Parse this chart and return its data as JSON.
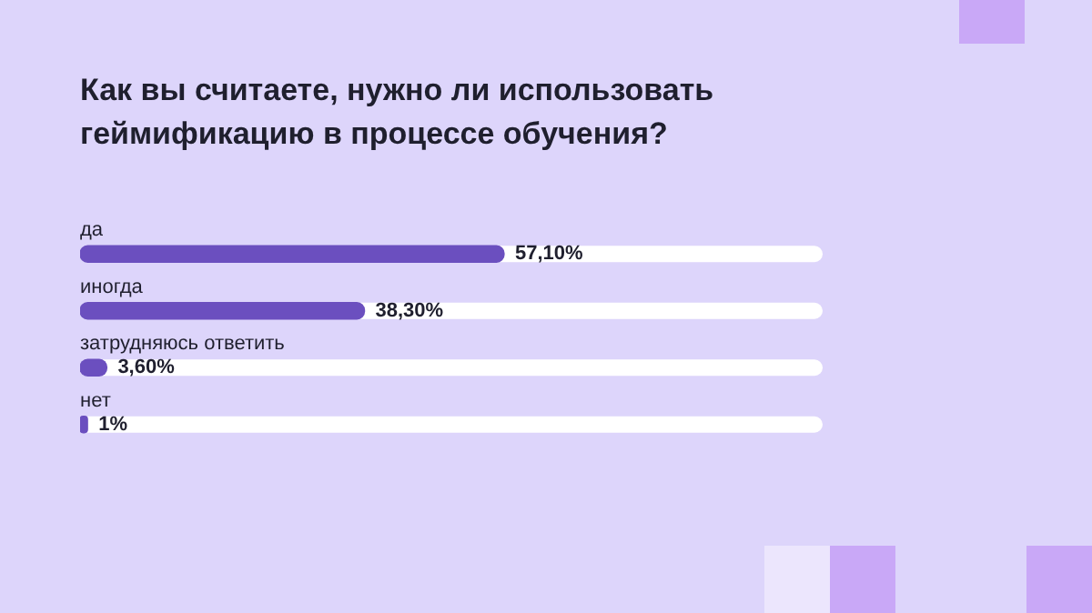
{
  "chart_data": {
    "type": "bar",
    "orientation": "horizontal",
    "title": "Как вы считаете, нужно ли использовать геймификацию в процессе обучения?",
    "categories": [
      "да",
      "иногда",
      "затрудняюсь ответить",
      "нет"
    ],
    "values": [
      57.1,
      38.3,
      3.6,
      1
    ],
    "value_labels": [
      "57,10%",
      "38,30%",
      "3,60%",
      "1%"
    ],
    "color": "#6b4fbf",
    "xlim": [
      0,
      100
    ]
  }
}
